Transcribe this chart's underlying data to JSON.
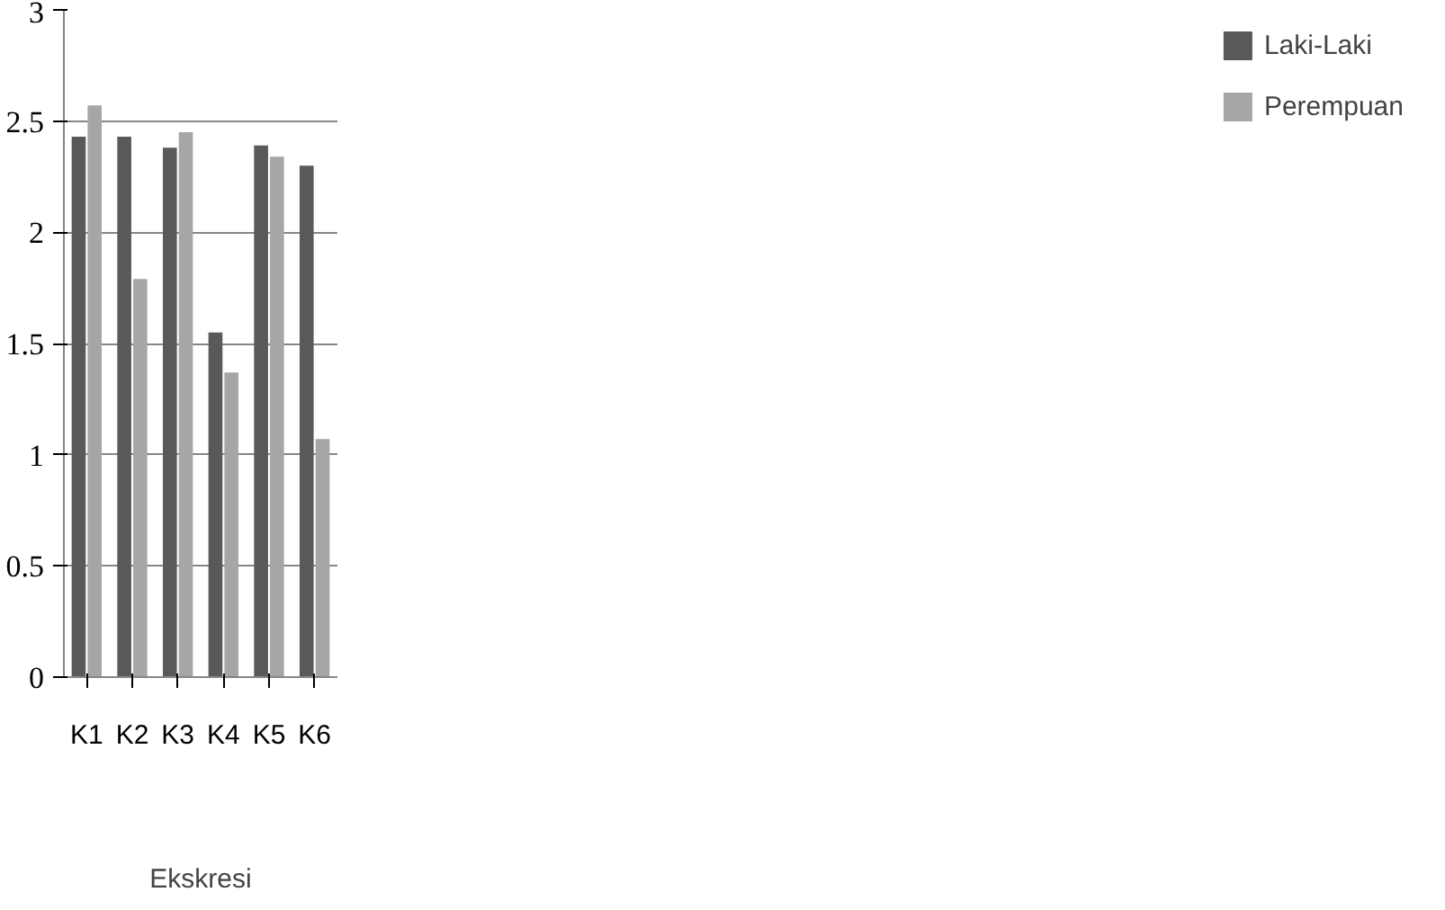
{
  "chart_data": {
    "type": "bar",
    "xlabel": "Ekskresi",
    "categories": [
      "K1",
      "K2",
      "K3",
      "K4",
      "K5",
      "K6"
    ],
    "series": [
      {
        "name": "Laki-Laki",
        "color": "#595959",
        "values": [
          2.43,
          2.43,
          2.38,
          1.55,
          2.39,
          2.3
        ]
      },
      {
        "name": "Perempuan",
        "color": "#a6a6a6",
        "values": [
          2.57,
          1.79,
          2.45,
          1.37,
          2.34,
          1.07
        ]
      }
    ],
    "ylim": [
      0,
      3
    ],
    "yticks": [
      0,
      0.5,
      1,
      1.5,
      2,
      2.5,
      3
    ],
    "grid": "y",
    "legend": "right"
  }
}
